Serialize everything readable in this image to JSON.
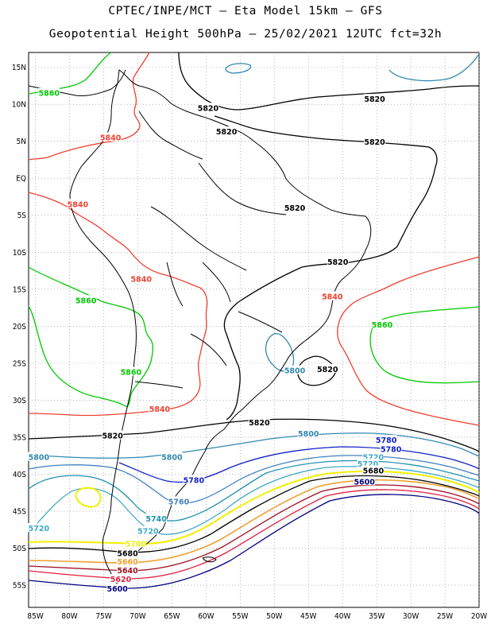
{
  "header": {
    "line1": "CPTEC/INPE/MCT –  Eta Model 15km – GFS",
    "line2": "Geopotential Height 500hPa – 25/02/2021 12UTC fct=32h"
  },
  "map": {
    "lat_labels": [
      "15N",
      "10N",
      "5N",
      "EQ",
      "5S",
      "10S",
      "15S",
      "20S",
      "25S",
      "30S",
      "35S",
      "40S",
      "45S",
      "50S",
      "55S"
    ],
    "lon_labels": [
      "85W",
      "80W",
      "75W",
      "70W",
      "65W",
      "60W",
      "55W",
      "50W",
      "45W",
      "40W",
      "35W",
      "30W",
      "25W",
      "20W"
    ],
    "lon_range": [
      -86,
      -20
    ],
    "lat_range": [
      -58,
      17
    ],
    "grid": "dotted",
    "contour_colors": {
      "5860": "#00c800",
      "5840": "#f04030",
      "5820": "#000000",
      "5800": "#3088b0",
      "5780": "#1020c8",
      "5760": "#4080c0",
      "5740": "#2090b0",
      "5720": "#40a8c8",
      "5700": "#f0f000",
      "5680": "#000000",
      "5660": "#f0a030",
      "5640": "#a01020",
      "5620": "#e02040",
      "5600": "#000080"
    }
  },
  "contour_labels": [
    {
      "text": "5860",
      "level": "5860",
      "lon": -83.0,
      "lat": 11.5
    },
    {
      "text": "5840",
      "level": "5840",
      "lon": -74.0,
      "lat": 5.5
    },
    {
      "text": "5820",
      "level": "5820",
      "lon": -59.7,
      "lat": 9.5
    },
    {
      "text": "5820",
      "level": "5820",
      "lon": -57.0,
      "lat": 6.3
    },
    {
      "text": "5820",
      "level": "5820",
      "lon": -35.3,
      "lat": 10.7
    },
    {
      "text": "5820",
      "level": "5820",
      "lon": -35.3,
      "lat": 4.9
    },
    {
      "text": "5840",
      "level": "5840",
      "lon": -78.8,
      "lat": -3.5
    },
    {
      "text": "5820",
      "level": "5820",
      "lon": -47.0,
      "lat": -4.0
    },
    {
      "text": "5820",
      "level": "5820",
      "lon": -40.7,
      "lat": -11.3
    },
    {
      "text": "5840",
      "level": "5840",
      "lon": -69.5,
      "lat": -13.6
    },
    {
      "text": "5860",
      "level": "5860",
      "lon": -77.6,
      "lat": -16.5
    },
    {
      "text": "5840",
      "level": "5840",
      "lon": -41.5,
      "lat": -16.0
    },
    {
      "text": "5860",
      "level": "5860",
      "lon": -34.2,
      "lat": -19.8
    },
    {
      "text": "5800",
      "level": "5800",
      "lon": -47.0,
      "lat": -26.0
    },
    {
      "text": "5820",
      "level": "5820",
      "lon": -42.2,
      "lat": -25.8
    },
    {
      "text": "5860",
      "level": "5860",
      "lon": -71.0,
      "lat": -26.2
    },
    {
      "text": "5840",
      "level": "5840",
      "lon": -66.8,
      "lat": -31.2
    },
    {
      "text": "5820",
      "level": "5820",
      "lon": -52.2,
      "lat": -33.0
    },
    {
      "text": "5820",
      "level": "5820",
      "lon": -73.7,
      "lat": -34.8
    },
    {
      "text": "5800",
      "level": "5800",
      "lon": -45.0,
      "lat": -34.5
    },
    {
      "text": "5780",
      "level": "5780",
      "lon": -33.6,
      "lat": -35.4
    },
    {
      "text": "5780",
      "level": "5780",
      "lon": -32.9,
      "lat": -36.6
    },
    {
      "text": "5800",
      "level": "5800",
      "lon": -84.5,
      "lat": -37.7
    },
    {
      "text": "5800",
      "level": "5800",
      "lon": -65.0,
      "lat": -37.7
    },
    {
      "text": "5720",
      "level": "5720",
      "lon": -35.5,
      "lat": -37.7
    },
    {
      "text": "5720",
      "level": "5720",
      "lon": -36.3,
      "lat": -38.6
    },
    {
      "text": "5680",
      "level": "5680",
      "lon": -35.5,
      "lat": -39.5
    },
    {
      "text": "5600",
      "level": "5600",
      "lon": -36.8,
      "lat": -41.0
    },
    {
      "text": "5780",
      "level": "5780",
      "lon": -61.8,
      "lat": -40.8
    },
    {
      "text": "5760",
      "level": "5760",
      "lon": -64.0,
      "lat": -43.7
    },
    {
      "text": "5740",
      "level": "5740",
      "lon": -67.3,
      "lat": -46.0
    },
    {
      "text": "5720",
      "level": "5720",
      "lon": -84.5,
      "lat": -47.3
    },
    {
      "text": "5720",
      "level": "5720",
      "lon": -68.5,
      "lat": -47.7
    },
    {
      "text": "5700",
      "level": "5700",
      "lon": -70.3,
      "lat": -49.4
    },
    {
      "text": "5680",
      "level": "5680",
      "lon": -71.5,
      "lat": -50.7
    },
    {
      "text": "5660",
      "level": "5660",
      "lon": -71.5,
      "lat": -51.8
    },
    {
      "text": "5640",
      "level": "5640",
      "lon": -71.5,
      "lat": -53.0
    },
    {
      "text": "5620",
      "level": "5620",
      "lon": -72.5,
      "lat": -54.2
    },
    {
      "text": "5600",
      "level": "5600",
      "lon": -73.0,
      "lat": -55.5
    }
  ]
}
